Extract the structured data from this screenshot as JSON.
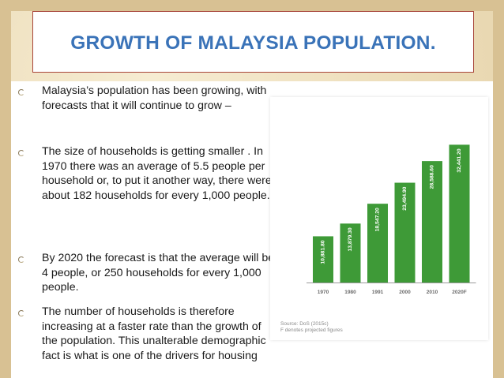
{
  "slide": {
    "title": "GROWTH OF MALAYSIA POPULATION."
  },
  "bullets": [
    "Malaysia’s population has been growing, with forecasts that it will continue to grow –",
    "The size of households is getting smaller . In 1970 there was an average of 5.5 people per household or, to put it another way, there were about 182 households for every 1,000 people.",
    "By 2020 the forecast is that the average will be 4 people, or 250 households for every 1,000 people.",
    "The number of  households is therefore increasing at a faster rate than the growth of the population. This unalterable demographic fact is what is one of the drivers for housing"
  ],
  "chart_data": {
    "type": "bar",
    "categories": [
      "1970",
      "1980",
      "1991",
      "2000",
      "2010",
      "2020F"
    ],
    "values": [
      10881.8,
      13879.3,
      18547.2,
      23494.9,
      28588.6,
      32441.2
    ],
    "value_labels": [
      "10,881.80",
      "13,879.30",
      "18,547.20",
      "23,494.90",
      "28,588.60",
      "32,441.20"
    ],
    "ylim": [
      0,
      34000
    ],
    "grid": false,
    "bar_color": "#3e9a37",
    "label_color": "#ffffff",
    "source": "Source: DoS (2015c)",
    "note": "F denotes projected figures"
  },
  "colors": {
    "title": "#3a73b8",
    "title_border": "#a8453a",
    "background": "#efe2c2"
  }
}
